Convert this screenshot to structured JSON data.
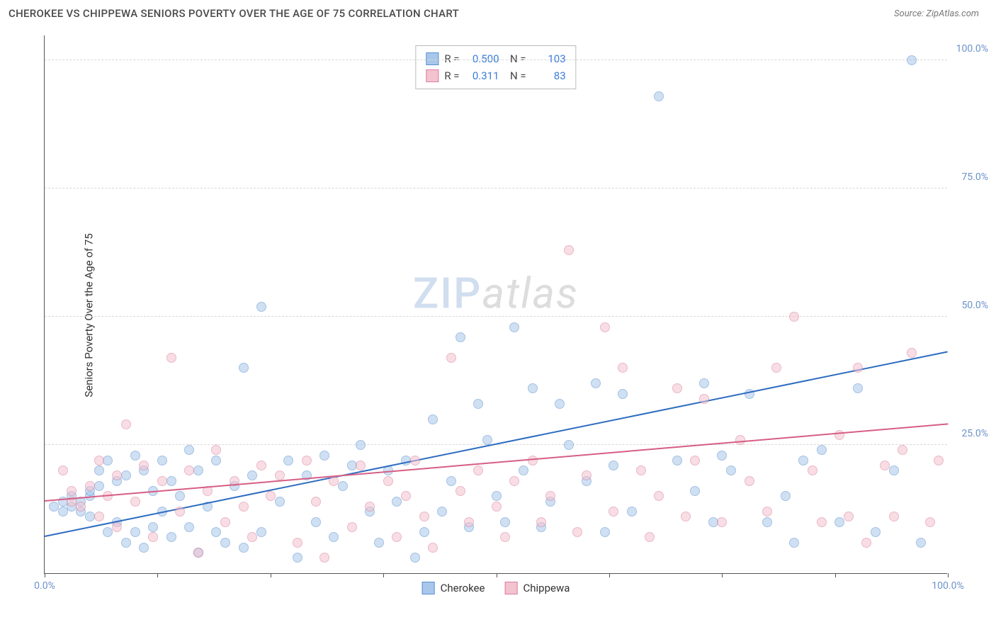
{
  "header": {
    "title": "CHEROKEE VS CHIPPEWA SENIORS POVERTY OVER THE AGE OF 75 CORRELATION CHART",
    "source_label": "Source: ZipAtlas.com"
  },
  "chart": {
    "type": "scatter",
    "y_axis_label": "Seniors Poverty Over the Age of 75",
    "xlim": [
      0,
      100
    ],
    "ylim": [
      0,
      105
    ],
    "x_ticks": [
      0,
      12.5,
      25,
      37.5,
      50,
      62.5,
      75,
      87.5,
      100
    ],
    "x_tick_labels": {
      "0": "0.0%",
      "100": "100.0%"
    },
    "y_gridlines": [
      25,
      50,
      75,
      100
    ],
    "y_tick_labels": {
      "25": "25.0%",
      "50": "50.0%",
      "75": "75.0%",
      "100": "100.0%"
    },
    "background_color": "#ffffff",
    "grid_color": "#d8d8d8",
    "axis_color": "#555555",
    "tick_label_color": "#6b93c9",
    "point_radius": 7,
    "point_opacity": 0.55,
    "watermark": {
      "part1": "ZIP",
      "part2": "atlas"
    },
    "series": [
      {
        "name": "Cherokee",
        "fill_color": "#a8c7eb",
        "stroke_color": "#5b8fd0",
        "legend": {
          "r": "0.500",
          "n": "103"
        },
        "trend": {
          "x1": 0,
          "y1": 7,
          "x2": 100,
          "y2": 43,
          "color": "#2d6cc0",
          "width": 2
        },
        "points": [
          [
            1,
            13
          ],
          [
            2,
            14
          ],
          [
            2,
            12
          ],
          [
            3,
            15
          ],
          [
            3,
            13
          ],
          [
            4,
            12
          ],
          [
            4,
            14
          ],
          [
            5,
            11
          ],
          [
            5,
            15
          ],
          [
            5,
            16
          ],
          [
            6,
            17
          ],
          [
            6,
            20
          ],
          [
            7,
            8
          ],
          [
            7,
            22
          ],
          [
            8,
            10
          ],
          [
            8,
            18
          ],
          [
            9,
            6
          ],
          [
            9,
            19
          ],
          [
            10,
            8
          ],
          [
            10,
            23
          ],
          [
            11,
            5
          ],
          [
            11,
            20
          ],
          [
            12,
            16
          ],
          [
            12,
            9
          ],
          [
            13,
            12
          ],
          [
            13,
            22
          ],
          [
            14,
            7
          ],
          [
            14,
            18
          ],
          [
            15,
            15
          ],
          [
            16,
            9
          ],
          [
            16,
            24
          ],
          [
            17,
            4
          ],
          [
            17,
            20
          ],
          [
            18,
            13
          ],
          [
            19,
            8
          ],
          [
            19,
            22
          ],
          [
            20,
            6
          ],
          [
            21,
            17
          ],
          [
            22,
            40
          ],
          [
            22,
            5
          ],
          [
            23,
            19
          ],
          [
            24,
            52
          ],
          [
            24,
            8
          ],
          [
            26,
            14
          ],
          [
            27,
            22
          ],
          [
            28,
            3
          ],
          [
            29,
            19
          ],
          [
            30,
            10
          ],
          [
            31,
            23
          ],
          [
            32,
            7
          ],
          [
            33,
            17
          ],
          [
            34,
            21
          ],
          [
            35,
            25
          ],
          [
            36,
            12
          ],
          [
            37,
            6
          ],
          [
            38,
            20
          ],
          [
            39,
            14
          ],
          [
            40,
            22
          ],
          [
            41,
            3
          ],
          [
            42,
            8
          ],
          [
            43,
            30
          ],
          [
            44,
            12
          ],
          [
            45,
            18
          ],
          [
            46,
            46
          ],
          [
            47,
            9
          ],
          [
            48,
            33
          ],
          [
            49,
            26
          ],
          [
            50,
            15
          ],
          [
            51,
            10
          ],
          [
            52,
            48
          ],
          [
            53,
            20
          ],
          [
            54,
            36
          ],
          [
            55,
            9
          ],
          [
            56,
            14
          ],
          [
            57,
            33
          ],
          [
            58,
            25
          ],
          [
            60,
            18
          ],
          [
            61,
            37
          ],
          [
            62,
            8
          ],
          [
            63,
            21
          ],
          [
            64,
            35
          ],
          [
            65,
            12
          ],
          [
            68,
            93
          ],
          [
            70,
            22
          ],
          [
            72,
            16
          ],
          [
            73,
            37
          ],
          [
            74,
            10
          ],
          [
            75,
            23
          ],
          [
            76,
            20
          ],
          [
            78,
            35
          ],
          [
            80,
            10
          ],
          [
            82,
            15
          ],
          [
            83,
            6
          ],
          [
            84,
            22
          ],
          [
            86,
            24
          ],
          [
            88,
            10
          ],
          [
            90,
            36
          ],
          [
            92,
            8
          ],
          [
            94,
            20
          ],
          [
            96,
            100
          ],
          [
            97,
            6
          ]
        ]
      },
      {
        "name": "Chippewa",
        "fill_color": "#f3c3cf",
        "stroke_color": "#dc7d9a",
        "legend": {
          "r": "0.311",
          "n": "83"
        },
        "trend": {
          "x1": 0,
          "y1": 14,
          "x2": 100,
          "y2": 29,
          "color": "#d65e84",
          "width": 2
        },
        "points": [
          [
            2,
            20
          ],
          [
            3,
            14
          ],
          [
            3,
            16
          ],
          [
            4,
            13
          ],
          [
            5,
            17
          ],
          [
            6,
            11
          ],
          [
            6,
            22
          ],
          [
            7,
            15
          ],
          [
            8,
            9
          ],
          [
            8,
            19
          ],
          [
            9,
            29
          ],
          [
            10,
            14
          ],
          [
            11,
            21
          ],
          [
            12,
            7
          ],
          [
            13,
            18
          ],
          [
            14,
            42
          ],
          [
            15,
            12
          ],
          [
            16,
            20
          ],
          [
            17,
            4
          ],
          [
            18,
            16
          ],
          [
            19,
            24
          ],
          [
            20,
            10
          ],
          [
            21,
            18
          ],
          [
            22,
            13
          ],
          [
            23,
            7
          ],
          [
            24,
            21
          ],
          [
            25,
            15
          ],
          [
            26,
            19
          ],
          [
            28,
            6
          ],
          [
            29,
            22
          ],
          [
            30,
            14
          ],
          [
            31,
            3
          ],
          [
            32,
            18
          ],
          [
            34,
            9
          ],
          [
            35,
            21
          ],
          [
            36,
            13
          ],
          [
            38,
            18
          ],
          [
            39,
            7
          ],
          [
            40,
            15
          ],
          [
            41,
            22
          ],
          [
            42,
            11
          ],
          [
            43,
            5
          ],
          [
            45,
            42
          ],
          [
            46,
            16
          ],
          [
            47,
            10
          ],
          [
            48,
            20
          ],
          [
            50,
            13
          ],
          [
            51,
            7
          ],
          [
            52,
            18
          ],
          [
            54,
            22
          ],
          [
            55,
            10
          ],
          [
            56,
            15
          ],
          [
            58,
            63
          ],
          [
            59,
            8
          ],
          [
            60,
            19
          ],
          [
            62,
            48
          ],
          [
            63,
            12
          ],
          [
            64,
            40
          ],
          [
            66,
            20
          ],
          [
            67,
            7
          ],
          [
            68,
            15
          ],
          [
            70,
            36
          ],
          [
            71,
            11
          ],
          [
            72,
            22
          ],
          [
            73,
            34
          ],
          [
            75,
            10
          ],
          [
            77,
            26
          ],
          [
            78,
            18
          ],
          [
            80,
            12
          ],
          [
            81,
            40
          ],
          [
            83,
            50
          ],
          [
            85,
            20
          ],
          [
            86,
            10
          ],
          [
            88,
            27
          ],
          [
            89,
            11
          ],
          [
            90,
            40
          ],
          [
            91,
            6
          ],
          [
            93,
            21
          ],
          [
            94,
            11
          ],
          [
            95,
            24
          ],
          [
            96,
            43
          ],
          [
            98,
            10
          ],
          [
            99,
            22
          ]
        ]
      }
    ],
    "bottom_legend": [
      {
        "label": "Cherokee",
        "fill": "#a8c7eb",
        "stroke": "#5b8fd0"
      },
      {
        "label": "Chippewa",
        "fill": "#f3c3cf",
        "stroke": "#dc7d9a"
      }
    ]
  }
}
